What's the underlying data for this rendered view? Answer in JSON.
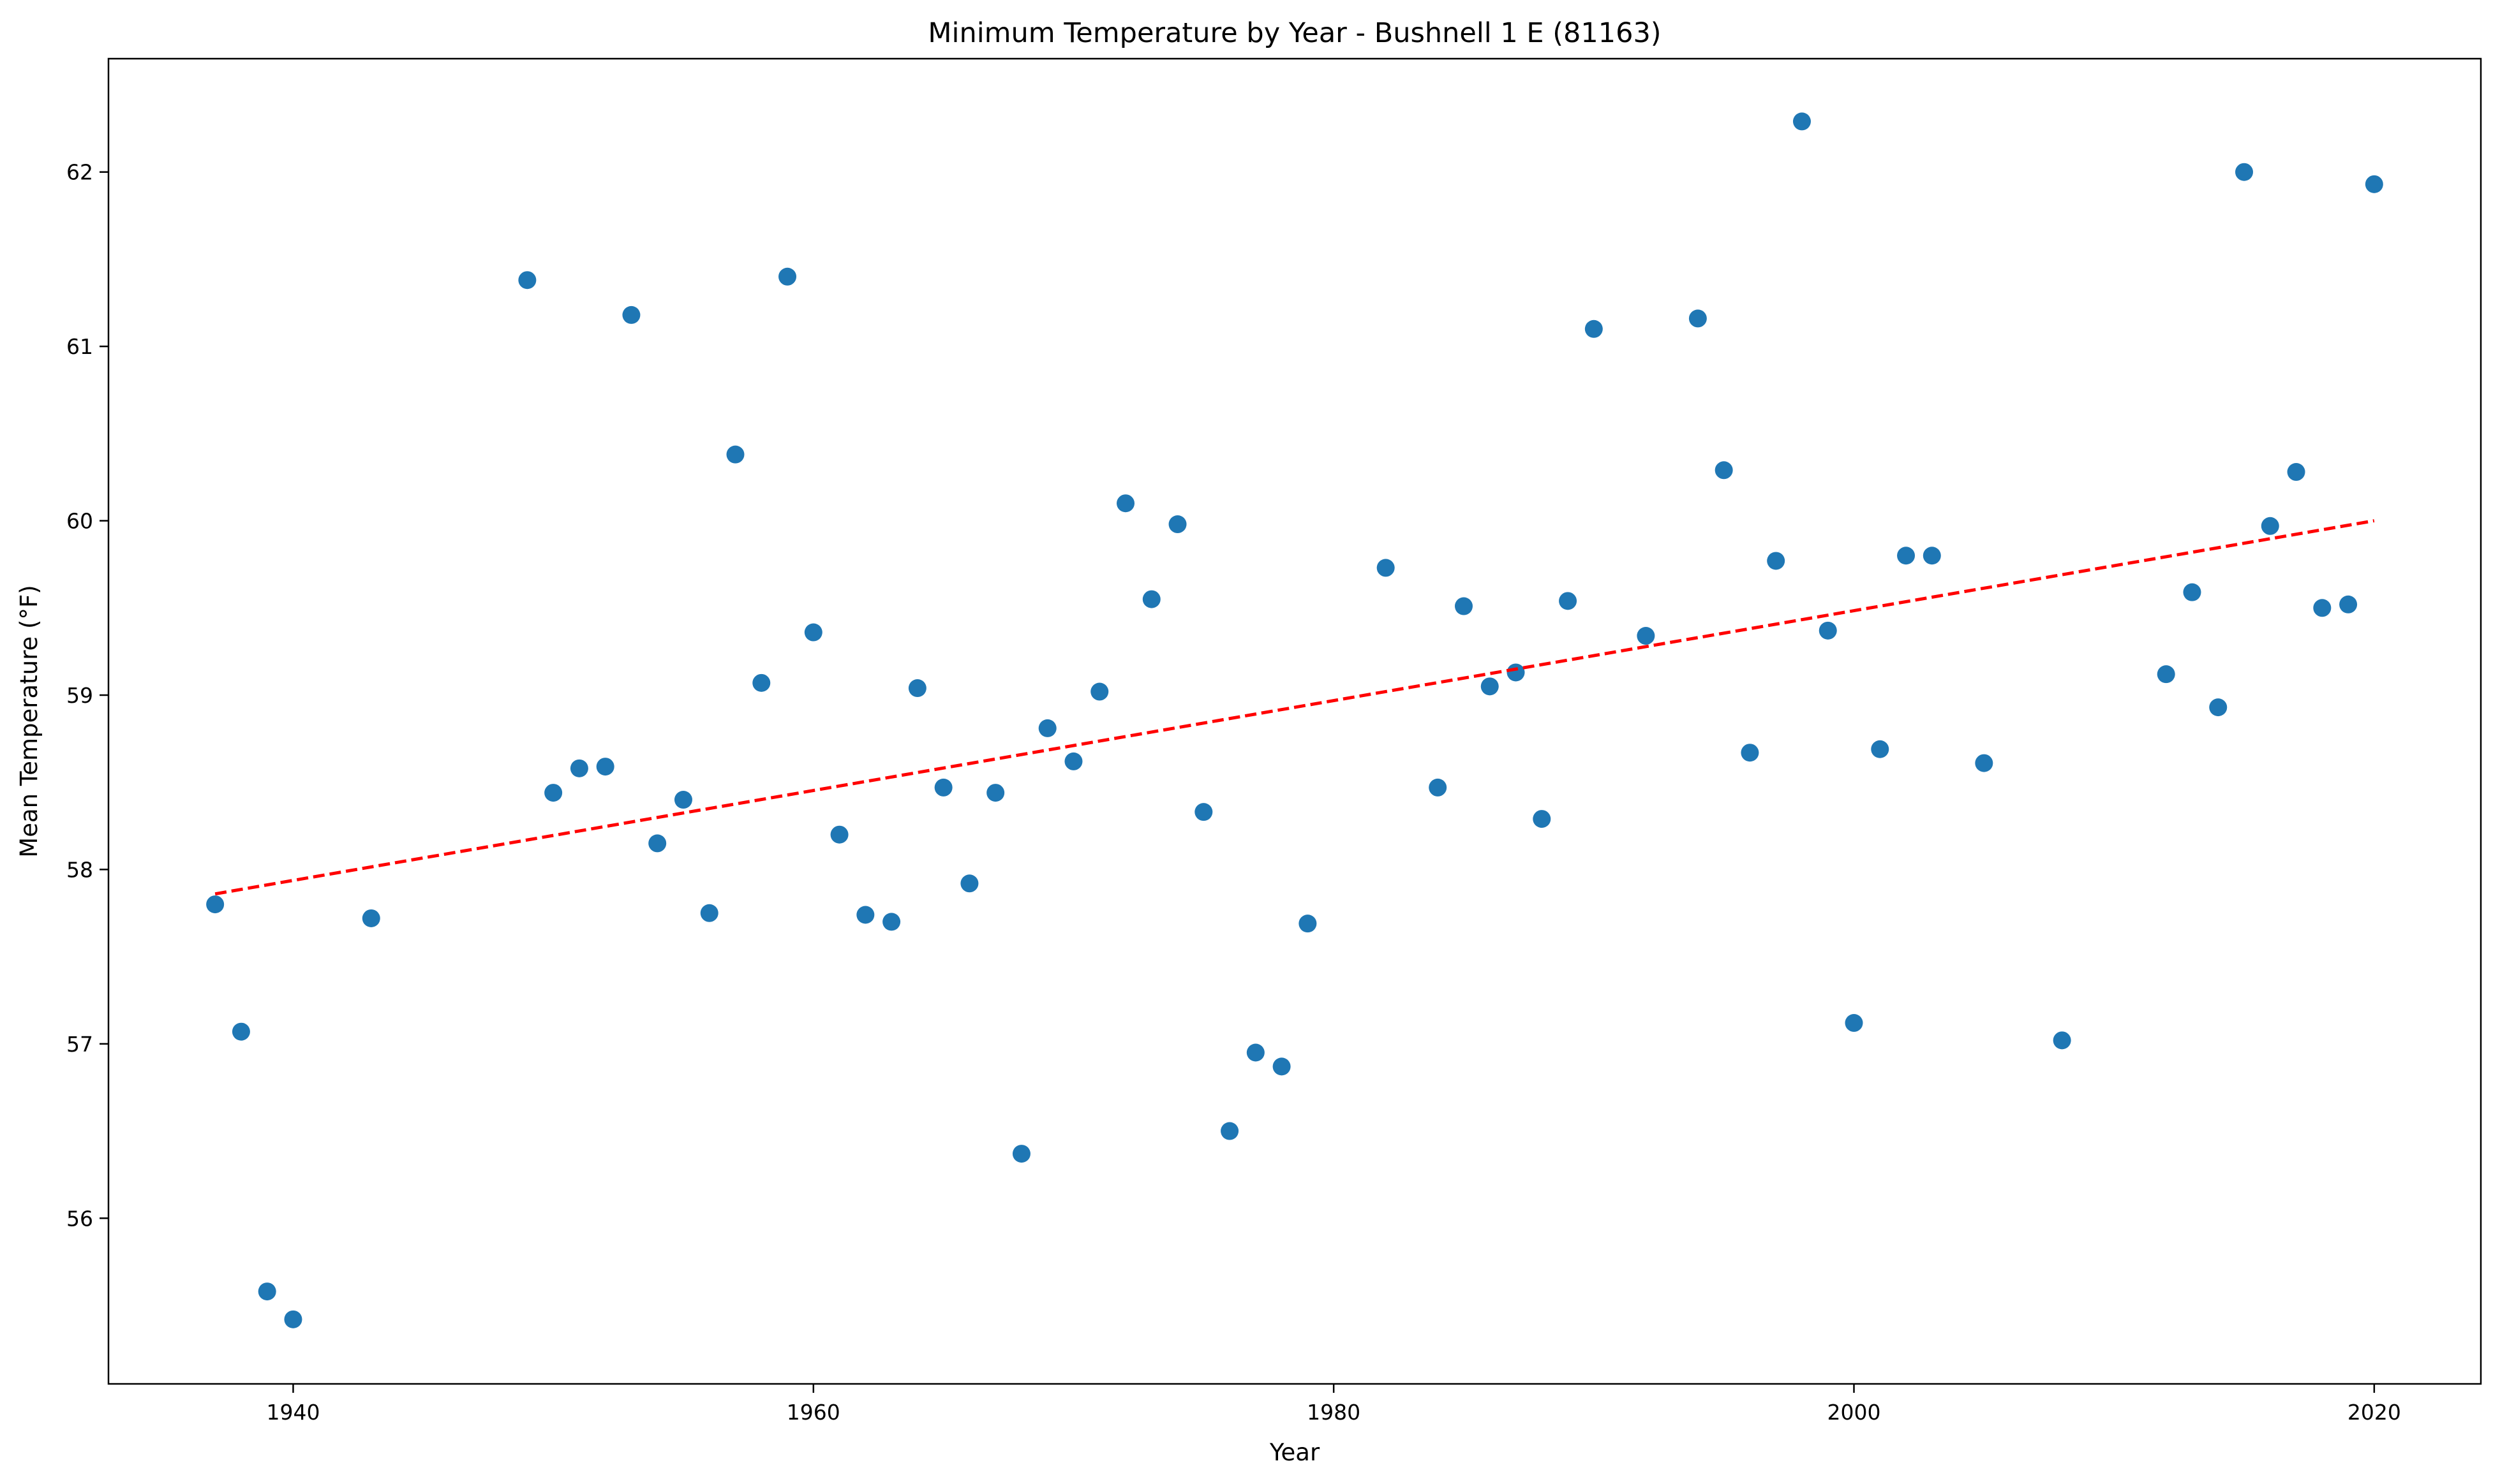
{
  "chart_data": {
    "type": "scatter",
    "title": "Minimum Temperature by Year - Bushnell 1 E (81163)",
    "xlabel": "Year",
    "ylabel": "Mean Temperature (°F)",
    "xlim": [
      1932.9,
      2024.1
    ],
    "ylim": [
      55.05,
      62.65
    ],
    "xticks": [
      1940,
      1960,
      1980,
      2000,
      2020
    ],
    "yticks": [
      56,
      57,
      58,
      59,
      60,
      61,
      62
    ],
    "grid": false,
    "legend": "none",
    "point_color": "#1f77b4",
    "trend_color": "#ff0000",
    "points": [
      [
        1937,
        57.8
      ],
      [
        1938,
        57.07
      ],
      [
        1939,
        55.58
      ],
      [
        1940,
        55.42
      ],
      [
        1943,
        57.72
      ],
      [
        1949,
        61.38
      ],
      [
        1950,
        58.44
      ],
      [
        1951,
        58.58
      ],
      [
        1952,
        58.59
      ],
      [
        1953,
        61.18
      ],
      [
        1954,
        58.15
      ],
      [
        1955,
        58.4
      ],
      [
        1956,
        57.75
      ],
      [
        1957,
        60.38
      ],
      [
        1958,
        59.07
      ],
      [
        1959,
        61.4
      ],
      [
        1960,
        59.36
      ],
      [
        1961,
        58.2
      ],
      [
        1962,
        57.74
      ],
      [
        1963,
        57.7
      ],
      [
        1964,
        59.04
      ],
      [
        1965,
        58.47
      ],
      [
        1966,
        57.92
      ],
      [
        1967,
        58.44
      ],
      [
        1968,
        56.37
      ],
      [
        1969,
        58.81
      ],
      [
        1970,
        58.62
      ],
      [
        1971,
        59.02
      ],
      [
        1972,
        60.1
      ],
      [
        1973,
        59.55
      ],
      [
        1974,
        59.98
      ],
      [
        1975,
        58.33
      ],
      [
        1976,
        56.5
      ],
      [
        1977,
        56.95
      ],
      [
        1978,
        56.87
      ],
      [
        1979,
        57.69
      ],
      [
        1982,
        59.73
      ],
      [
        1984,
        58.47
      ],
      [
        1985,
        59.51
      ],
      [
        1986,
        59.05
      ],
      [
        1987,
        59.13
      ],
      [
        1988,
        58.29
      ],
      [
        1989,
        59.54
      ],
      [
        1990,
        61.1
      ],
      [
        1992,
        59.34
      ],
      [
        1994,
        61.16
      ],
      [
        1995,
        60.29
      ],
      [
        1996,
        58.67
      ],
      [
        1997,
        59.77
      ],
      [
        1998,
        62.29
      ],
      [
        1999,
        59.37
      ],
      [
        2000,
        57.12
      ],
      [
        2001,
        58.69
      ],
      [
        2002,
        59.8
      ],
      [
        2003,
        59.8
      ],
      [
        2005,
        58.61
      ],
      [
        2008,
        57.02
      ],
      [
        2012,
        59.12
      ],
      [
        2013,
        59.59
      ],
      [
        2014,
        58.93
      ],
      [
        2015,
        62.0
      ],
      [
        2016,
        59.97
      ],
      [
        2017,
        60.28
      ],
      [
        2018,
        59.5
      ],
      [
        2019,
        59.52
      ],
      [
        2020,
        61.93
      ]
    ],
    "trendline": {
      "x": [
        1937,
        2020
      ],
      "y": [
        57.86,
        60.0
      ],
      "style": "dashed"
    }
  }
}
